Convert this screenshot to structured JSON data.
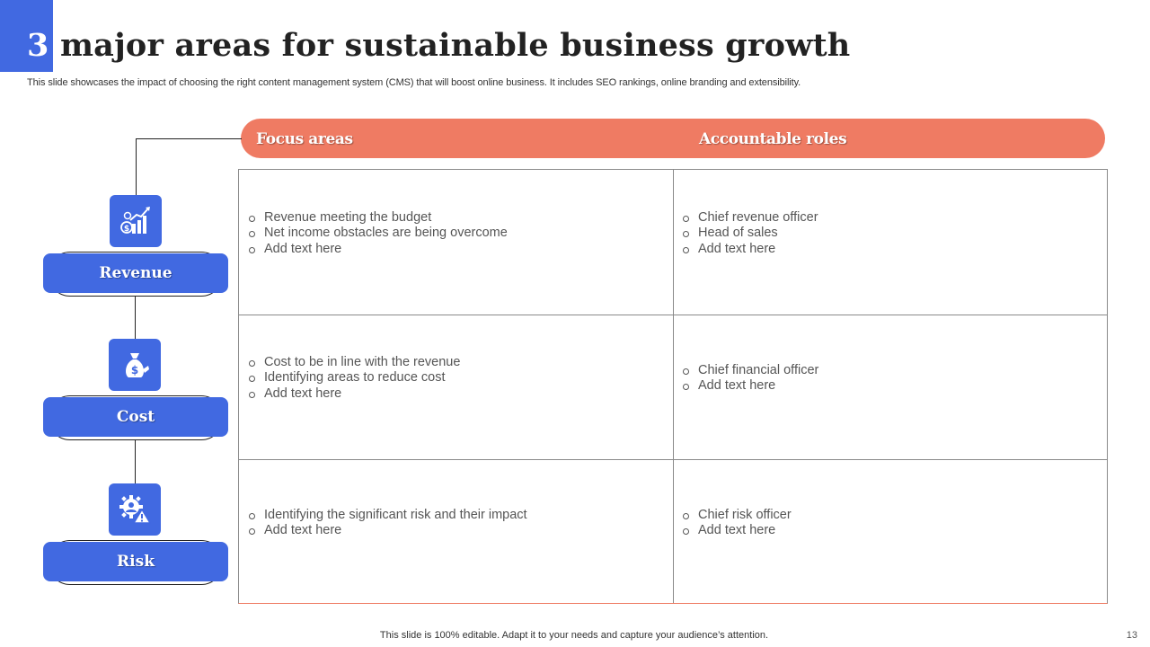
{
  "slide": {
    "title_number": "3",
    "title_text": "major areas for sustainable business growth",
    "subtitle": "This slide showcases the impact of choosing the right content management system (CMS) that will boost online business. It includes SEO rankings,  online branding and extensibility.",
    "footer": "This slide is 100% editable. Adapt it to your needs and capture your audience’s attention.",
    "page_number": "13"
  },
  "table": {
    "headers": [
      "Focus areas",
      "Accountable roles"
    ],
    "rows": [
      {
        "area": "Revenue",
        "icon": "revenue-growth-icon",
        "focus": [
          "Revenue meeting the budget",
          "Net income obstacles are being overcome",
          "Add text here"
        ],
        "roles": [
          "Chief revenue officer",
          "Head of sales",
          "Add text here"
        ]
      },
      {
        "area": "Cost",
        "icon": "money-bag-icon",
        "focus": [
          "Cost to be in line with the revenue",
          "Identifying  areas to reduce cost",
          "Add text here"
        ],
        "roles": [
          "Chief financial officer",
          "Add text here"
        ]
      },
      {
        "area": "Risk",
        "icon": "risk-gear-warning-icon",
        "focus": [
          "Identifying  the significant risk and their impact",
          "Add text here"
        ],
        "roles": [
          "Chief risk officer",
          "Add text here"
        ]
      }
    ]
  },
  "colors": {
    "accent_blue": "#4169e1",
    "header_orange": "#ef7b63"
  }
}
